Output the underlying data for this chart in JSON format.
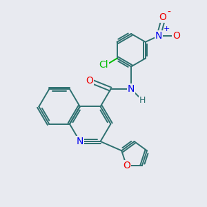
{
  "bg_color": "#e8eaf0",
  "bond_color": "#2d7070",
  "atom_colors": {
    "N": "#0000ee",
    "O": "#ee0000",
    "Cl": "#00bb00",
    "C": "#2d7070",
    "H": "#555555"
  }
}
